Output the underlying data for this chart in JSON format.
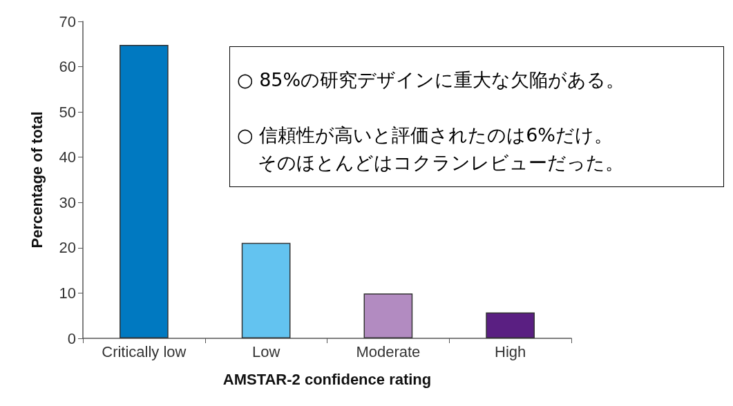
{
  "chart_data": {
    "type": "bar",
    "xlabel": "AMSTAR-2 confidence rating",
    "ylabel": "Percentage of total",
    "categories": [
      "Critically low",
      "Low",
      "Moderate",
      "High"
    ],
    "values": [
      64.8,
      21.1,
      9.9,
      5.7
    ],
    "colors": [
      "#0079c1",
      "#63c3f0",
      "#b28bc1",
      "#5a1f82"
    ],
    "ylim": [
      0,
      70
    ],
    "yticks": [
      0,
      10,
      20,
      30,
      40,
      50,
      60,
      70
    ],
    "grid": false,
    "annotations": [
      "○ 85%の研究デザインに重大な欠陥がある。",
      "○ 信頼性が高いと評価されたのは6%だけ。",
      "そのほとんどはコクランレビューだった。"
    ]
  }
}
